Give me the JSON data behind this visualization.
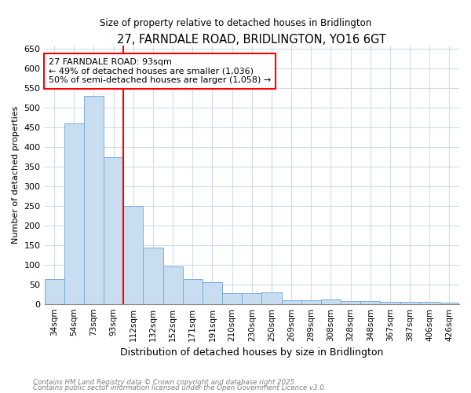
{
  "title": "27, FARNDALE ROAD, BRIDLINGTON, YO16 6GT",
  "subtitle": "Size of property relative to detached houses in Bridlington",
  "xlabel": "Distribution of detached houses by size in Bridlington",
  "ylabel": "Number of detached properties",
  "categories": [
    "34sqm",
    "54sqm",
    "73sqm",
    "93sqm",
    "112sqm",
    "132sqm",
    "152sqm",
    "171sqm",
    "191sqm",
    "210sqm",
    "230sqm",
    "250sqm",
    "269sqm",
    "289sqm",
    "308sqm",
    "328sqm",
    "348sqm",
    "367sqm",
    "387sqm",
    "406sqm",
    "426sqm"
  ],
  "values": [
    63,
    460,
    530,
    375,
    250,
    143,
    95,
    63,
    55,
    28,
    28,
    30,
    10,
    10,
    12,
    7,
    8,
    5,
    5,
    6,
    4
  ],
  "bar_color": "#c8ddf0",
  "bar_edge_color": "#7aabdb",
  "vline_x_index": 3,
  "vline_color": "red",
  "annotation_text": "27 FARNDALE ROAD: 93sqm\n← 49% of detached houses are smaller (1,036)\n50% of semi-detached houses are larger (1,058) →",
  "annotation_box_color": "white",
  "annotation_box_edge_color": "red",
  "ylim": [
    0,
    660
  ],
  "yticks": [
    0,
    50,
    100,
    150,
    200,
    250,
    300,
    350,
    400,
    450,
    500,
    550,
    600,
    650
  ],
  "footnote1": "Contains HM Land Registry data © Crown copyright and database right 2025.",
  "footnote2": "Contains public sector information licensed under the Open Government Licence v3.0.",
  "bg_color": "#ffffff",
  "plot_bg_color": "#ffffff",
  "grid_color": "#d0dce8"
}
